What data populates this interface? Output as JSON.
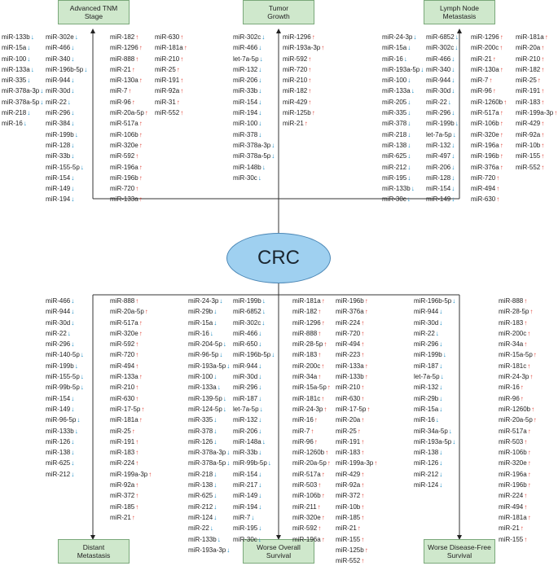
{
  "center_label": "CRC",
  "colors": {
    "up": "#e0443a",
    "down": "#1a8cc4",
    "box_fill": "#cfe8cc",
    "ellipse_fill": "#9fd0f0"
  },
  "boxes": {
    "tnm": "Advanced TNM\nStage",
    "tumor": "Tumor\nGrowth",
    "lymph": "Lymph Node\nMetastasis",
    "distant": "Distant\nMetastasis",
    "overall": "Worse Overall\nSurvival",
    "dfs": "Worse Disease-Free\nSurvival"
  },
  "columns": [
    {
      "id": "c1",
      "items": [
        [
          "miR-133b",
          "down"
        ],
        [
          "miR-15a",
          "down"
        ],
        [
          "miR-100",
          "down"
        ],
        [
          "miR-133a",
          "down"
        ],
        [
          "miR-335",
          "down"
        ],
        [
          "miR-378a-3p",
          "down"
        ],
        [
          "miR-378a-5p",
          "down"
        ],
        [
          "miR-218",
          "down"
        ],
        [
          "miR-16",
          "down"
        ]
      ]
    },
    {
      "id": "c2",
      "items": [
        [
          "miR-302e",
          "down"
        ],
        [
          "miR-466",
          "down"
        ],
        [
          "miR-340",
          "down"
        ],
        [
          "miR-196b-5p",
          "down"
        ],
        [
          "miR-944",
          "down"
        ],
        [
          "miR-30d",
          "down"
        ],
        [
          "miR-22",
          "down"
        ],
        [
          "miR-296",
          "down"
        ],
        [
          "miR-384",
          "down"
        ],
        [
          "miR-199b",
          "down"
        ],
        [
          "miR-128",
          "down"
        ],
        [
          "miR-33b",
          "down"
        ],
        [
          "miR-155-5p",
          "down"
        ],
        [
          "miR-154",
          "down"
        ],
        [
          "miR-149",
          "down"
        ],
        [
          "miR-194",
          "down"
        ]
      ]
    },
    {
      "id": "c3",
      "items": [
        [
          "miR-182",
          "up"
        ],
        [
          "miR-1296",
          "up"
        ],
        [
          "miR-888",
          "up"
        ],
        [
          "miR-21",
          "up"
        ],
        [
          "miR-130a",
          "up"
        ],
        [
          "miR-7",
          "up"
        ],
        [
          "miR-96",
          "up"
        ],
        [
          "miR-20a-5p",
          "up"
        ],
        [
          "miR-517a",
          "up"
        ],
        [
          "miR-106b",
          "up"
        ],
        [
          "miR-320e",
          "up"
        ],
        [
          "miR-592",
          "up"
        ],
        [
          "miR-196a",
          "up"
        ],
        [
          "miR-196b",
          "up"
        ],
        [
          "miR-720",
          "up"
        ],
        [
          "miR-133a",
          "up"
        ]
      ]
    },
    {
      "id": "c4",
      "items": [
        [
          "miR-630",
          "up"
        ],
        [
          "miR-181a",
          "up"
        ],
        [
          "miR-210",
          "up"
        ],
        [
          "miR-25",
          "up"
        ],
        [
          "miR-191",
          "up"
        ],
        [
          "miR-92a",
          "up"
        ],
        [
          "miR-31",
          "up"
        ],
        [
          "miR-552",
          "up"
        ]
      ]
    },
    {
      "id": "c5",
      "items": [
        [
          "miR-302c",
          "down"
        ],
        [
          "miR-466",
          "down"
        ],
        [
          "let-7a-5p",
          "down"
        ],
        [
          "miR-132",
          "down"
        ],
        [
          "miR-206",
          "down"
        ],
        [
          "miR-33b",
          "down"
        ],
        [
          "miR-154",
          "down"
        ],
        [
          "miR-194",
          "down"
        ],
        [
          "miR-100",
          "down"
        ],
        [
          "miR-378",
          "down"
        ],
        [
          "miR-378a-3p",
          "down"
        ],
        [
          "miR-378a-5p",
          "down"
        ],
        [
          "miR-148b",
          "down"
        ],
        [
          "miR-30c",
          "down"
        ]
      ]
    },
    {
      "id": "c6",
      "items": [
        [
          "miR-1296",
          "up"
        ],
        [
          "miR-193a-3p",
          "up"
        ],
        [
          "miR-592",
          "up"
        ],
        [
          "miR-720",
          "up"
        ],
        [
          "miR-210",
          "up"
        ],
        [
          "miR-182",
          "up"
        ],
        [
          "miR-429",
          "up"
        ],
        [
          "miR-125b",
          "up"
        ],
        [
          "miR-21",
          "up"
        ]
      ]
    },
    {
      "id": "c7",
      "items": [
        [
          "miR-24-3p",
          "down"
        ],
        [
          "miR-15a",
          "down"
        ],
        [
          "miR-16",
          "down"
        ],
        [
          "miR-193a-5p",
          "down"
        ],
        [
          "miR-100",
          "down"
        ],
        [
          "miR-133a",
          "down"
        ],
        [
          "miR-205",
          "down"
        ],
        [
          "miR-335",
          "down"
        ],
        [
          "miR-378",
          "down"
        ],
        [
          "miR-218",
          "down"
        ],
        [
          "miR-138",
          "down"
        ],
        [
          "miR-625",
          "down"
        ],
        [
          "miR-212",
          "down"
        ],
        [
          "miR-195",
          "down"
        ],
        [
          "miR-133b",
          "down"
        ],
        [
          "miR-30c",
          "down"
        ]
      ]
    },
    {
      "id": "c8",
      "items": [
        [
          "miR-6852",
          "down"
        ],
        [
          "miR-302c",
          "down"
        ],
        [
          "miR-466",
          "down"
        ],
        [
          "miR-340",
          "down"
        ],
        [
          "miR-944",
          "down"
        ],
        [
          "miR-30d",
          "down"
        ],
        [
          "miR-22",
          "down"
        ],
        [
          "miR-296",
          "down"
        ],
        [
          "miR-199b",
          "down"
        ],
        [
          "let-7a-5p",
          "down"
        ],
        [
          "miR-132",
          "down"
        ],
        [
          "miR-497",
          "down"
        ],
        [
          "miR-206",
          "down"
        ],
        [
          "miR-128",
          "down"
        ],
        [
          "miR-154",
          "down"
        ],
        [
          "miR-149",
          "down"
        ]
      ]
    },
    {
      "id": "c9",
      "items": [
        [
          "miR-1296",
          "up"
        ],
        [
          "miR-200c",
          "up"
        ],
        [
          "miR-21",
          "up"
        ],
        [
          "miR-130a",
          "up"
        ],
        [
          "miR-7",
          "up"
        ],
        [
          "miR-96",
          "up"
        ],
        [
          "miR-1260b",
          "up"
        ],
        [
          "miR-517a",
          "up"
        ],
        [
          "miR-106b",
          "up"
        ],
        [
          "miR-320e",
          "up"
        ],
        [
          "miR-196a",
          "up"
        ],
        [
          "miR-196b",
          "up"
        ],
        [
          "miR-376a",
          "up"
        ],
        [
          "miR-720",
          "up"
        ],
        [
          "miR-494",
          "up"
        ],
        [
          "miR-630",
          "up"
        ]
      ]
    },
    {
      "id": "c10",
      "items": [
        [
          "miR-181a",
          "up"
        ],
        [
          "miR-20a",
          "up"
        ],
        [
          "miR-210",
          "up"
        ],
        [
          "miR-182",
          "up"
        ],
        [
          "miR-25",
          "up"
        ],
        [
          "miR-191",
          "up"
        ],
        [
          "miR-183",
          "up"
        ],
        [
          "miR-199a-3p",
          "up"
        ],
        [
          "miR-429",
          "up"
        ],
        [
          "miR-92a",
          "up"
        ],
        [
          "miR-10b",
          "up"
        ],
        [
          "miR-155",
          "up"
        ],
        [
          "miR-552",
          "up"
        ]
      ]
    },
    {
      "id": "b1",
      "items": [
        [
          "miR-466",
          "down"
        ],
        [
          "miR-944",
          "down"
        ],
        [
          "miR-30d",
          "down"
        ],
        [
          "miR-22",
          "down"
        ],
        [
          "miR-296",
          "down"
        ],
        [
          "miR-140-5p",
          "down"
        ],
        [
          "miR-199b",
          "down"
        ],
        [
          "miR-155-5p",
          "down"
        ],
        [
          "miR-99b-5p",
          "down"
        ],
        [
          "miR-154",
          "down"
        ],
        [
          "miR-149",
          "down"
        ],
        [
          "miR-96-5p",
          "down"
        ],
        [
          "miR-133b",
          "down"
        ],
        [
          "miR-126",
          "down"
        ],
        [
          "miR-138",
          "down"
        ],
        [
          "miR-625",
          "down"
        ],
        [
          "miR-212",
          "down"
        ]
      ]
    },
    {
      "id": "b2",
      "items": [
        [
          "miR-888",
          "up"
        ],
        [
          "miR-20a-5p",
          "up"
        ],
        [
          "miR-517a",
          "up"
        ],
        [
          "miR-320e",
          "up"
        ],
        [
          "miR-592",
          "up"
        ],
        [
          "miR-720",
          "up"
        ],
        [
          "miR-494",
          "up"
        ],
        [
          "miR-133a",
          "up"
        ],
        [
          "miR-210",
          "up"
        ],
        [
          "miR-630",
          "up"
        ],
        [
          "miR-17-5p",
          "up"
        ],
        [
          "miR-181a",
          "up"
        ],
        [
          "miR-25",
          "up"
        ],
        [
          "miR-191",
          "up"
        ],
        [
          "miR-183",
          "up"
        ],
        [
          "miR-224",
          "up"
        ],
        [
          "miR-199a-3p",
          "up"
        ],
        [
          "miR-92a",
          "up"
        ],
        [
          "miR-372",
          "up"
        ],
        [
          "miR-185",
          "up"
        ],
        [
          "miR-21",
          "up"
        ]
      ]
    },
    {
      "id": "b3",
      "items": [
        [
          "miR-24-3p",
          "down"
        ],
        [
          "miR-29b",
          "down"
        ],
        [
          "miR-15a",
          "down"
        ],
        [
          "miR-16",
          "down"
        ],
        [
          "miR-204-5p",
          "down"
        ],
        [
          "miR-96-5p",
          "down"
        ],
        [
          "miR-193a-5p",
          "down"
        ],
        [
          "miR-100",
          "down"
        ],
        [
          "miR-133a",
          "down"
        ],
        [
          "miR-139-5p",
          "down"
        ],
        [
          "miR-124-5p",
          "down"
        ],
        [
          "miR-335",
          "down"
        ],
        [
          "miR-378",
          "down"
        ],
        [
          "miR-126",
          "down"
        ],
        [
          "miR-378a-3p",
          "down"
        ],
        [
          "miR-378a-5p",
          "down"
        ],
        [
          "miR-218",
          "down"
        ],
        [
          "miR-138",
          "down"
        ],
        [
          "miR-625",
          "down"
        ],
        [
          "miR-212",
          "down"
        ],
        [
          "miR-124",
          "down"
        ],
        [
          "miR-22",
          "down"
        ],
        [
          "miR-133b",
          "down"
        ],
        [
          "miR-193a-3p",
          "down"
        ]
      ]
    },
    {
      "id": "b4",
      "items": [
        [
          "miR-199b",
          "down"
        ],
        [
          "miR-6852",
          "down"
        ],
        [
          "miR-302c",
          "down"
        ],
        [
          "miR-466",
          "down"
        ],
        [
          "miR-650",
          "down"
        ],
        [
          "miR-196b-5p",
          "down"
        ],
        [
          "miR-944",
          "down"
        ],
        [
          "miR-30d",
          "down"
        ],
        [
          "miR-296",
          "down"
        ],
        [
          "miR-187",
          "down"
        ],
        [
          "let-7a-5p",
          "down"
        ],
        [
          "miR-132",
          "down"
        ],
        [
          "miR-206",
          "down"
        ],
        [
          "miR-148a",
          "down"
        ],
        [
          "miR-33b",
          "down"
        ],
        [
          "miR-99b-5p",
          "down"
        ],
        [
          "miR-154",
          "down"
        ],
        [
          "miR-217",
          "down"
        ],
        [
          "miR-149",
          "down"
        ],
        [
          "miR-194",
          "down"
        ],
        [
          "miR-7",
          "down"
        ],
        [
          "miR-195",
          "down"
        ],
        [
          "miR-30c",
          "down"
        ]
      ]
    },
    {
      "id": "b5",
      "items": [
        [
          "miR-181a",
          "up"
        ],
        [
          "miR-182",
          "up"
        ],
        [
          "miR-1296",
          "up"
        ],
        [
          "miR-888",
          "up"
        ],
        [
          "miR-28-5p",
          "up"
        ],
        [
          "miR-183",
          "up"
        ],
        [
          "miR-200c",
          "up"
        ],
        [
          "miR-34a",
          "up"
        ],
        [
          "miR-15a-5p",
          "up"
        ],
        [
          "miR-181c",
          "up"
        ],
        [
          "miR-24-3p",
          "up"
        ],
        [
          "miR-16",
          "up"
        ],
        [
          "miR-7",
          "up"
        ],
        [
          "miR-96",
          "up"
        ],
        [
          "miR-1260b",
          "up"
        ],
        [
          "miR-20a-5p",
          "up"
        ],
        [
          "miR-517a",
          "up"
        ],
        [
          "miR-503",
          "up"
        ],
        [
          "miR-106b",
          "up"
        ],
        [
          "miR-211",
          "up"
        ],
        [
          "miR-320e",
          "up"
        ],
        [
          "miR-592",
          "up"
        ],
        [
          "miR-196a",
          "up"
        ]
      ]
    },
    {
      "id": "b6",
      "items": [
        [
          "miR-196b",
          "up"
        ],
        [
          "miR-376a",
          "up"
        ],
        [
          "miR-224",
          "up"
        ],
        [
          "miR-720",
          "up"
        ],
        [
          "miR-494",
          "up"
        ],
        [
          "miR-223",
          "up"
        ],
        [
          "miR-133a",
          "up"
        ],
        [
          "miR-133b",
          "up"
        ],
        [
          "miR-210",
          "up"
        ],
        [
          "miR-630",
          "up"
        ],
        [
          "miR-17-5p",
          "up"
        ],
        [
          "miR-20a",
          "up"
        ],
        [
          "miR-25",
          "up"
        ],
        [
          "miR-191",
          "up"
        ],
        [
          "miR-183",
          "up"
        ],
        [
          "miR-199a-3p",
          "up"
        ],
        [
          "miR-429",
          "up"
        ],
        [
          "miR-92a",
          "up"
        ],
        [
          "miR-372",
          "up"
        ],
        [
          "miR-10b",
          "up"
        ],
        [
          "miR-185",
          "up"
        ],
        [
          "miR-21",
          "up"
        ],
        [
          "miR-155",
          "up"
        ],
        [
          "miR-125b",
          "up"
        ],
        [
          "miR-552",
          "up"
        ]
      ]
    },
    {
      "id": "b7",
      "items": [
        [
          "miR-196b-5p",
          "down"
        ],
        [
          "miR-944",
          "down"
        ],
        [
          "miR-30d",
          "down"
        ],
        [
          "miR-22",
          "down"
        ],
        [
          "miR-296",
          "down"
        ],
        [
          "miR-199b",
          "down"
        ],
        [
          "miR-187",
          "down"
        ],
        [
          "let-7a-5p",
          "down"
        ],
        [
          "miR-132",
          "down"
        ],
        [
          "miR-29b",
          "down"
        ],
        [
          "miR-15a",
          "down"
        ],
        [
          "miR-16",
          "down"
        ],
        [
          "miR-34a-5p",
          "down"
        ],
        [
          "miR-193a-5p",
          "down"
        ],
        [
          "miR-138",
          "down"
        ],
        [
          "miR-126",
          "down"
        ],
        [
          "miR-212",
          "down"
        ],
        [
          "miR-124",
          "down"
        ]
      ]
    },
    {
      "id": "b8",
      "items": [
        [
          "miR-888",
          "up"
        ],
        [
          "miR-28-5p",
          "up"
        ],
        [
          "miR-183",
          "up"
        ],
        [
          "miR-200c",
          "up"
        ],
        [
          "miR-34a",
          "up"
        ],
        [
          "miR-15a-5p",
          "up"
        ],
        [
          "miR-181c",
          "up"
        ],
        [
          "miR-24-3p",
          "up"
        ],
        [
          "miR-16",
          "up"
        ],
        [
          "miR-96",
          "up"
        ],
        [
          "miR-1260b",
          "up"
        ],
        [
          "miR-20a-5p",
          "up"
        ],
        [
          "miR-517a",
          "up"
        ],
        [
          "miR-503",
          "up"
        ],
        [
          "miR-106b",
          "up"
        ],
        [
          "miR-320e",
          "up"
        ],
        [
          "miR-196a",
          "up"
        ],
        [
          "miR-196b",
          "up"
        ],
        [
          "miR-224",
          "up"
        ],
        [
          "miR-494",
          "up"
        ],
        [
          "miR-181a",
          "up"
        ],
        [
          "miR-21",
          "up"
        ],
        [
          "miR-155",
          "up"
        ]
      ]
    }
  ]
}
